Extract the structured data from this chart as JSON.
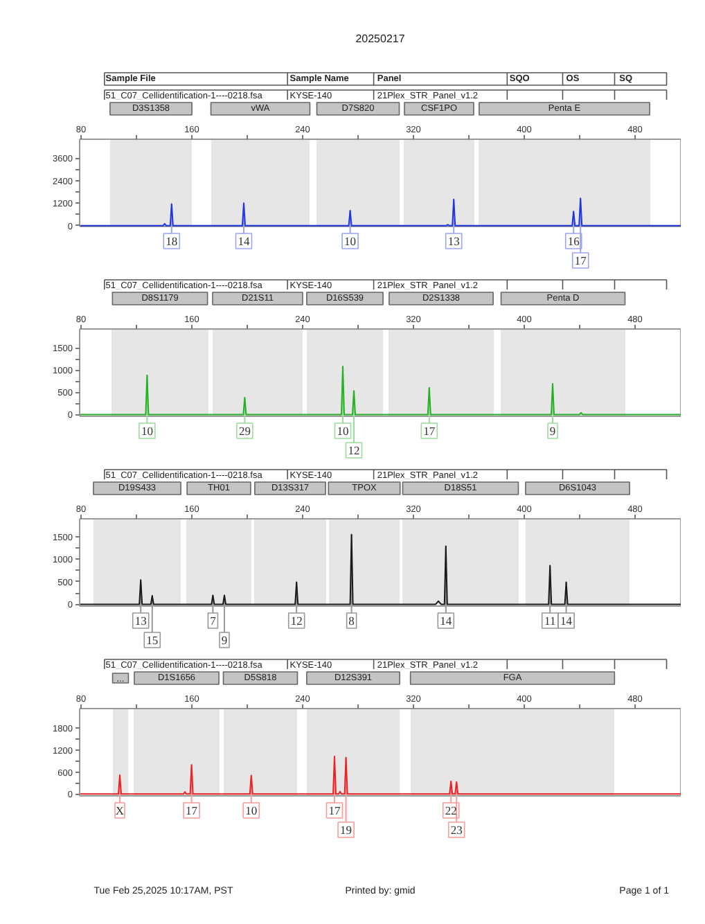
{
  "chart_data": [
    {
      "type": "other",
      "title": "20250217",
      "annotations": [
        "Sample File",
        "Sample Name",
        "Panel",
        "SQO",
        "OS",
        "SQ"
      ]
    },
    {
      "type": "line",
      "annotations": [
        "51_C07_Cellidentification-1----0218.fsa",
        "KYSE-140",
        "21Plex_STR_Panel_v1.2",
        {
          "text": "18",
          "x": 145.4,
          "y": 1150
        },
        {
          "text": "14",
          "x": 197.5,
          "y": 1200
        },
        {
          "text": "10",
          "x": 274.3,
          "y": 800
        },
        {
          "text": "13",
          "x": 349.1,
          "y": 1400
        },
        {
          "text": "16",
          "x": 435.6,
          "y": 750
        },
        {
          "text": "17",
          "x": 440.6,
          "y": 1450
        }
      ],
      "bands": [
        {
          "axis": "x",
          "from": 101,
          "to": 160,
          "label": "D3S1358"
        },
        {
          "axis": "x",
          "from": 174,
          "to": 245,
          "label": "vWA"
        },
        {
          "axis": "x",
          "from": 250,
          "to": 310,
          "label": "D7S820"
        },
        {
          "axis": "x",
          "from": 313,
          "to": 364,
          "label": "CSF1PO"
        },
        {
          "axis": "x",
          "from": 367,
          "to": 491,
          "label": "Penta E"
        }
      ],
      "color": "#2236e0",
      "x": [
        79,
        139.4,
        140.4,
        141.4,
        144.4,
        145.4,
        146.4,
        196.5,
        197.5,
        198.5,
        273.3,
        274.3,
        275.3,
        343.8,
        344.8,
        345.8,
        348.1,
        349.1,
        350.1,
        434.6,
        435.6,
        436.6,
        439.6,
        440.6,
        441.6,
        513
      ],
      "values": [
        0,
        0,
        100,
        0,
        0,
        1150,
        0,
        0,
        1200,
        0,
        0,
        800,
        0,
        0,
        50,
        0,
        0,
        1400,
        0,
        0,
        750,
        0,
        0,
        1450,
        0,
        0
      ],
      "xlim": [
        79,
        513
      ],
      "ylim": [
        -50,
        4600
      ],
      "xticks": [
        80,
        {
          "value": 120,
          "label": null
        },
        160,
        {
          "value": 200,
          "label": null
        },
        240,
        {
          "value": 280,
          "label": null
        },
        320,
        {
          "value": 360,
          "label": null
        },
        400,
        {
          "value": 440,
          "label": null
        },
        480
      ],
      "yticks": [
        0,
        {
          "value": 600,
          "label": null
        },
        1200,
        {
          "value": 1800,
          "label": null
        },
        2400,
        {
          "value": 3000,
          "label": null
        },
        3600
      ]
    },
    {
      "type": "line",
      "annotations": [
        "51_C07_Cellidentification-1----0218.fsa",
        "KYSE-140",
        "21Plex_STR_Panel_v1.2",
        {
          "text": "10",
          "x": 127.7,
          "y": 880
        },
        {
          "text": "29",
          "x": 198.2,
          "y": 380
        },
        {
          "text": "10",
          "x": 269,
          "y": 1080
        },
        {
          "text": "12",
          "x": 277,
          "y": 530
        },
        {
          "text": "17",
          "x": 331.4,
          "y": 600
        },
        {
          "text": "9",
          "x": 420.5,
          "y": 690
        }
      ],
      "bands": [
        {
          "axis": "x",
          "from": 102,
          "to": 172,
          "label": "D8S1179"
        },
        {
          "axis": "x",
          "from": 175,
          "to": 240,
          "label": "D21S11"
        },
        {
          "axis": "x",
          "from": 243,
          "to": 298,
          "label": "D16S539"
        },
        {
          "axis": "x",
          "from": 302,
          "to": 378,
          "label": "D2S1338"
        },
        {
          "axis": "x",
          "from": 383,
          "to": 473,
          "label": "Penta D"
        }
      ],
      "color": "#25b025",
      "x": [
        79,
        126.7,
        127.7,
        128.7,
        197.2,
        198.2,
        199.2,
        268,
        269,
        270,
        276,
        277,
        278,
        330.4,
        331.4,
        332.4,
        419.5,
        420.5,
        421.5,
        440,
        441,
        442,
        513
      ],
      "values": [
        0,
        0,
        880,
        0,
        0,
        380,
        0,
        0,
        1080,
        0,
        0,
        530,
        0,
        0,
        600,
        0,
        0,
        690,
        0,
        0,
        40,
        0,
        0
      ],
      "xlim": [
        79,
        513
      ],
      "ylim": [
        -40,
        1920
      ],
      "xticks": [
        80,
        {
          "value": 120,
          "label": null
        },
        160,
        {
          "value": 200,
          "label": null
        },
        240,
        {
          "value": 280,
          "label": null
        },
        320,
        {
          "value": 360,
          "label": null
        },
        400,
        {
          "value": 440,
          "label": null
        },
        480
      ],
      "yticks": [
        0,
        {
          "value": 250,
          "label": null
        },
        500,
        {
          "value": 750,
          "label": null
        },
        1000,
        {
          "value": 1250,
          "label": null
        },
        1500
      ]
    },
    {
      "type": "line",
      "annotations": [
        "51_C07_Cellidentification-1----0218.fsa",
        "KYSE-140",
        "21Plex_STR_Panel_v1.2",
        {
          "text": "13",
          "x": 123.1,
          "y": 540
        },
        {
          "text": "15",
          "x": 131.4,
          "y": 190
        },
        {
          "text": "7",
          "x": 175.2,
          "y": 200
        },
        {
          "text": "9",
          "x": 183.5,
          "y": 200
        },
        {
          "text": "12",
          "x": 235.6,
          "y": 490
        },
        {
          "text": "8",
          "x": 275.3,
          "y": 1550
        },
        {
          "text": "14",
          "x": 343.4,
          "y": 1290
        },
        {
          "text": "11",
          "x": 418.6,
          "y": 860
        },
        {
          "text": "14",
          "x": 430.3,
          "y": 490
        }
      ],
      "bands": [
        {
          "axis": "x",
          "from": 89,
          "to": 152,
          "label": "D19S433"
        },
        {
          "axis": "x",
          "from": 156,
          "to": 203,
          "label": "TH01"
        },
        {
          "axis": "x",
          "from": 205,
          "to": 257,
          "label": "D13S317"
        },
        {
          "axis": "x",
          "from": 259,
          "to": 310,
          "label": "TPOX"
        },
        {
          "axis": "x",
          "from": 312,
          "to": 396,
          "label": "D18S51"
        },
        {
          "axis": "x",
          "from": 401,
          "to": 476,
          "label": "D6S1043"
        }
      ],
      "color": "#1a1a1a",
      "x": [
        79,
        122.1,
        123.1,
        124.1,
        130.4,
        131.4,
        132.4,
        174.2,
        175.2,
        176.2,
        182.5,
        183.5,
        184.5,
        234.6,
        235.6,
        236.6,
        274.3,
        275.3,
        276.3,
        336,
        338,
        340,
        342.4,
        343.4,
        344.4,
        417.6,
        418.6,
        419.6,
        429.3,
        430.3,
        431.3,
        513
      ],
      "values": [
        0,
        0,
        540,
        0,
        0,
        190,
        0,
        0,
        200,
        0,
        0,
        200,
        0,
        0,
        490,
        0,
        0,
        1550,
        0,
        0,
        70,
        0,
        0,
        1290,
        0,
        0,
        860,
        0,
        0,
        490,
        0,
        0
      ],
      "xlim": [
        79,
        513
      ],
      "ylim": [
        -40,
        1900
      ],
      "xticks": [
        80,
        {
          "value": 120,
          "label": null
        },
        160,
        {
          "value": 200,
          "label": null
        },
        240,
        {
          "value": 280,
          "label": null
        },
        320,
        {
          "value": 360,
          "label": null
        },
        400,
        {
          "value": 440,
          "label": null
        },
        480
      ],
      "yticks": [
        0,
        {
          "value": 250,
          "label": null
        },
        500,
        {
          "value": 750,
          "label": null
        },
        1000,
        {
          "value": 1250,
          "label": null
        },
        1500
      ]
    },
    {
      "type": "line",
      "annotations": [
        "51_C07_Cellidentification-1----0218.fsa",
        "KYSE-140",
        "21Plex_STR_Panel_v1.2",
        {
          "text": "X",
          "x": 108,
          "y": 520
        },
        {
          "text": "17",
          "x": 159.8,
          "y": 800
        },
        {
          "text": "10",
          "x": 202.9,
          "y": 510
        },
        {
          "text": "17",
          "x": 263,
          "y": 1030
        },
        {
          "text": "19",
          "x": 271.3,
          "y": 1000
        },
        {
          "text": "22",
          "x": 347.1,
          "y": 350
        },
        {
          "text": "23",
          "x": 351.1,
          "y": 330
        }
      ],
      "bands": [
        {
          "axis": "x",
          "from": 103,
          "to": 114,
          "label": "..."
        },
        {
          "axis": "x",
          "from": 118,
          "to": 180,
          "label": "D1S1656"
        },
        {
          "axis": "x",
          "from": 183,
          "to": 236,
          "label": "D5S818"
        },
        {
          "axis": "x",
          "from": 243,
          "to": 310,
          "label": "D12S391"
        },
        {
          "axis": "x",
          "from": 318,
          "to": 465,
          "label": "FGA"
        }
      ],
      "color": "#ee2222",
      "x": [
        79,
        107,
        108,
        109,
        154,
        155,
        156,
        158.8,
        159.8,
        160.8,
        201.9,
        202.9,
        203.9,
        262,
        263,
        264,
        266,
        267,
        268,
        270.3,
        271.3,
        272.3,
        346.1,
        347.1,
        348.1,
        350.1,
        351.1,
        352.1,
        513
      ],
      "values": [
        0,
        0,
        520,
        0,
        0,
        60,
        0,
        0,
        800,
        0,
        0,
        510,
        0,
        0,
        1030,
        0,
        0,
        70,
        0,
        0,
        1000,
        0,
        0,
        350,
        0,
        0,
        330,
        0,
        0
      ],
      "xlim": [
        79,
        513
      ],
      "ylim": [
        -50,
        2340
      ],
      "xticks": [
        80,
        {
          "value": 120,
          "label": null
        },
        160,
        {
          "value": 200,
          "label": null
        },
        240,
        {
          "value": 280,
          "label": null
        },
        320,
        {
          "value": 360,
          "label": null
        },
        400,
        {
          "value": 440,
          "label": null
        },
        480
      ],
      "yticks": [
        0,
        {
          "value": 300,
          "label": null
        },
        600,
        {
          "value": 900,
          "label": null
        },
        1200,
        {
          "value": 1500,
          "label": null
        },
        1800
      ]
    },
    {
      "type": "other",
      "annotations": [
        "Tue Feb 25,2025 10:17AM, PST",
        "Printed by: gmid",
        "Page 1 of 1"
      ]
    }
  ]
}
